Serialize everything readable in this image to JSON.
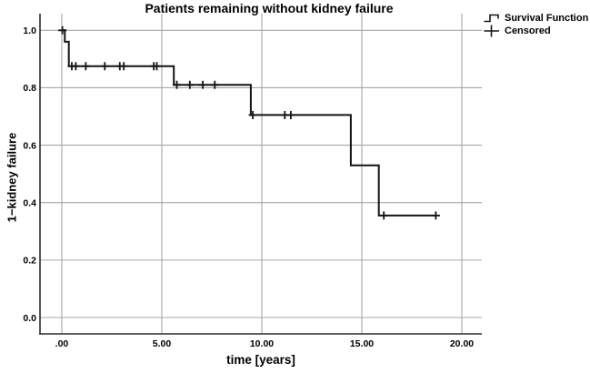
{
  "chart_data": {
    "type": "line",
    "subtype": "kaplan-meier-step",
    "title": "Patients remaining without kidney failure",
    "xlabel": "time [years]",
    "ylabel": "1−kidney failure",
    "xlim": [
      -1.09,
      21.0
    ],
    "ylim": [
      -0.057,
      1.058
    ],
    "xtick_values": [
      0,
      5,
      10,
      15,
      20
    ],
    "xtick_labels": [
      ".00",
      "5.00",
      "10.00",
      "15.00",
      "20.00"
    ],
    "ytick_values": [
      0.0,
      0.2,
      0.4,
      0.6,
      0.8,
      1.0
    ],
    "ytick_labels": [
      "0.0",
      "0.2",
      "0.4",
      "0.6",
      "0.8",
      "1.0"
    ],
    "grid": true,
    "legend_position": "top-right",
    "legend": [
      "Survival Function",
      "Censored"
    ],
    "colors": {
      "line": "#141414",
      "grid": "#a6a6a6",
      "axis": "#2b2b2b",
      "text": "#000000",
      "background": "#ffffff"
    },
    "series": [
      {
        "name": "Survival Function",
        "type": "step",
        "points": [
          [
            0,
            1.0
          ],
          [
            0.15,
            1.0
          ],
          [
            0.15,
            0.96
          ],
          [
            0.35,
            0.96
          ],
          [
            0.35,
            0.875
          ],
          [
            5.6,
            0.875
          ],
          [
            5.6,
            0.81
          ],
          [
            9.45,
            0.81
          ],
          [
            9.45,
            0.705
          ],
          [
            14.45,
            0.705
          ],
          [
            14.45,
            0.53
          ],
          [
            15.85,
            0.53
          ],
          [
            15.85,
            0.355
          ],
          [
            18.7,
            0.355
          ]
        ]
      },
      {
        "name": "Censored",
        "type": "marker-plus",
        "points": [
          [
            0.03,
            1.0
          ],
          [
            0.5,
            0.875
          ],
          [
            0.7,
            0.875
          ],
          [
            1.2,
            0.875
          ],
          [
            2.15,
            0.875
          ],
          [
            2.9,
            0.875
          ],
          [
            3.1,
            0.875
          ],
          [
            4.6,
            0.875
          ],
          [
            4.75,
            0.875
          ],
          [
            5.75,
            0.81
          ],
          [
            6.4,
            0.81
          ],
          [
            7.05,
            0.81
          ],
          [
            7.65,
            0.81
          ],
          [
            9.55,
            0.705
          ],
          [
            11.15,
            0.705
          ],
          [
            11.45,
            0.705
          ],
          [
            16.1,
            0.355
          ],
          [
            18.7,
            0.355
          ]
        ]
      }
    ]
  }
}
